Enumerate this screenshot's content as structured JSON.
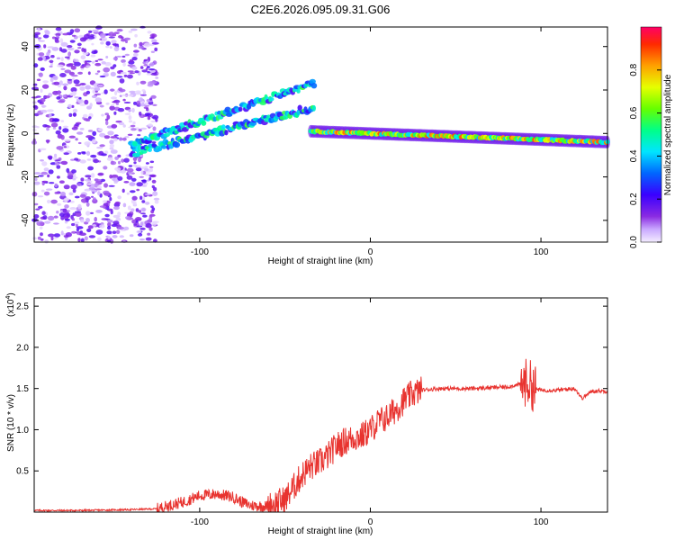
{
  "chart_data": [
    {
      "type": "heatmap",
      "title": "C2E6.2026.095.09.31.G06",
      "xlabel": "Height of straight line (km)",
      "ylabel": "Frequency (Hz)",
      "xlim": [
        -197,
        139
      ],
      "ylim": [
        -50,
        49
      ],
      "xticks": [
        "-100",
        "0",
        "100"
      ],
      "xtick_values": [
        -100,
        0,
        100
      ],
      "yticks": [
        "-40",
        "-20",
        "0",
        "20",
        "40"
      ],
      "ytick_values": [
        -40,
        -20,
        0,
        20,
        40
      ],
      "colorbar": {
        "label": "Normalized spectral amplitude",
        "range": [
          0,
          1
        ],
        "ticks": [
          "0.0",
          "0.2",
          "0.4",
          "0.6",
          "0.8"
        ],
        "tick_values": [
          0.0,
          0.2,
          0.4,
          0.6,
          0.8
        ]
      },
      "features": [
        {
          "name": "noise-region",
          "x": [
            -197,
            -125
          ],
          "y": [
            -50,
            49
          ],
          "amplitude": 0.15
        },
        {
          "name": "upper-trend",
          "x": [
            -140,
            -33
          ],
          "y_start": -5,
          "y_end": 23,
          "amplitude": 0.45
        },
        {
          "name": "lower-trend",
          "x": [
            -140,
            -33
          ],
          "y_start": -9,
          "y_end": 12,
          "amplitude": 0.45
        },
        {
          "name": "main-track",
          "x": [
            -35,
            139
          ],
          "y_start": 1,
          "y_end": -4,
          "amplitude": 0.85
        }
      ]
    },
    {
      "type": "line",
      "title": "",
      "xlabel": "Height of straight line (km)",
      "ylabel": "SNR (10 * v/v)",
      "y_scale_label": "(x10",
      "y_scale_exp": "4",
      "xlim": [
        -197,
        139
      ],
      "ylim": [
        0,
        2.6
      ],
      "xticks": [
        "-100",
        "0",
        "100"
      ],
      "xtick_values": [
        -100,
        0,
        100
      ],
      "yticks": [
        "0.5",
        "1.0",
        "1.5",
        "2.0",
        "2.5"
      ],
      "ytick_values": [
        0.5,
        1.0,
        1.5,
        2.0,
        2.5
      ],
      "series": [
        {
          "name": "SNR",
          "color": "#e8332f",
          "x": [
            -197,
            -170,
            -140,
            -125,
            -118,
            -110,
            -100,
            -90,
            -80,
            -75,
            -70,
            -60,
            -50,
            -45,
            -40,
            -35,
            -30,
            -25,
            -20,
            -15,
            -10,
            -5,
            0,
            5,
            10,
            15,
            20,
            25,
            30,
            40,
            60,
            80,
            88,
            92,
            94,
            96,
            100,
            110,
            120,
            124,
            130,
            139
          ],
          "y": [
            0.02,
            0.02,
            0.03,
            0.04,
            0.08,
            0.12,
            0.2,
            0.22,
            0.18,
            0.12,
            0.08,
            0.07,
            0.15,
            0.3,
            0.45,
            0.55,
            0.6,
            0.68,
            0.8,
            0.86,
            0.9,
            0.92,
            1.0,
            1.1,
            1.15,
            1.25,
            1.36,
            1.44,
            1.48,
            1.5,
            1.5,
            1.52,
            1.55,
            1.58,
            1.55,
            1.5,
            1.48,
            1.48,
            1.5,
            1.38,
            1.47,
            1.47
          ]
        }
      ]
    }
  ]
}
